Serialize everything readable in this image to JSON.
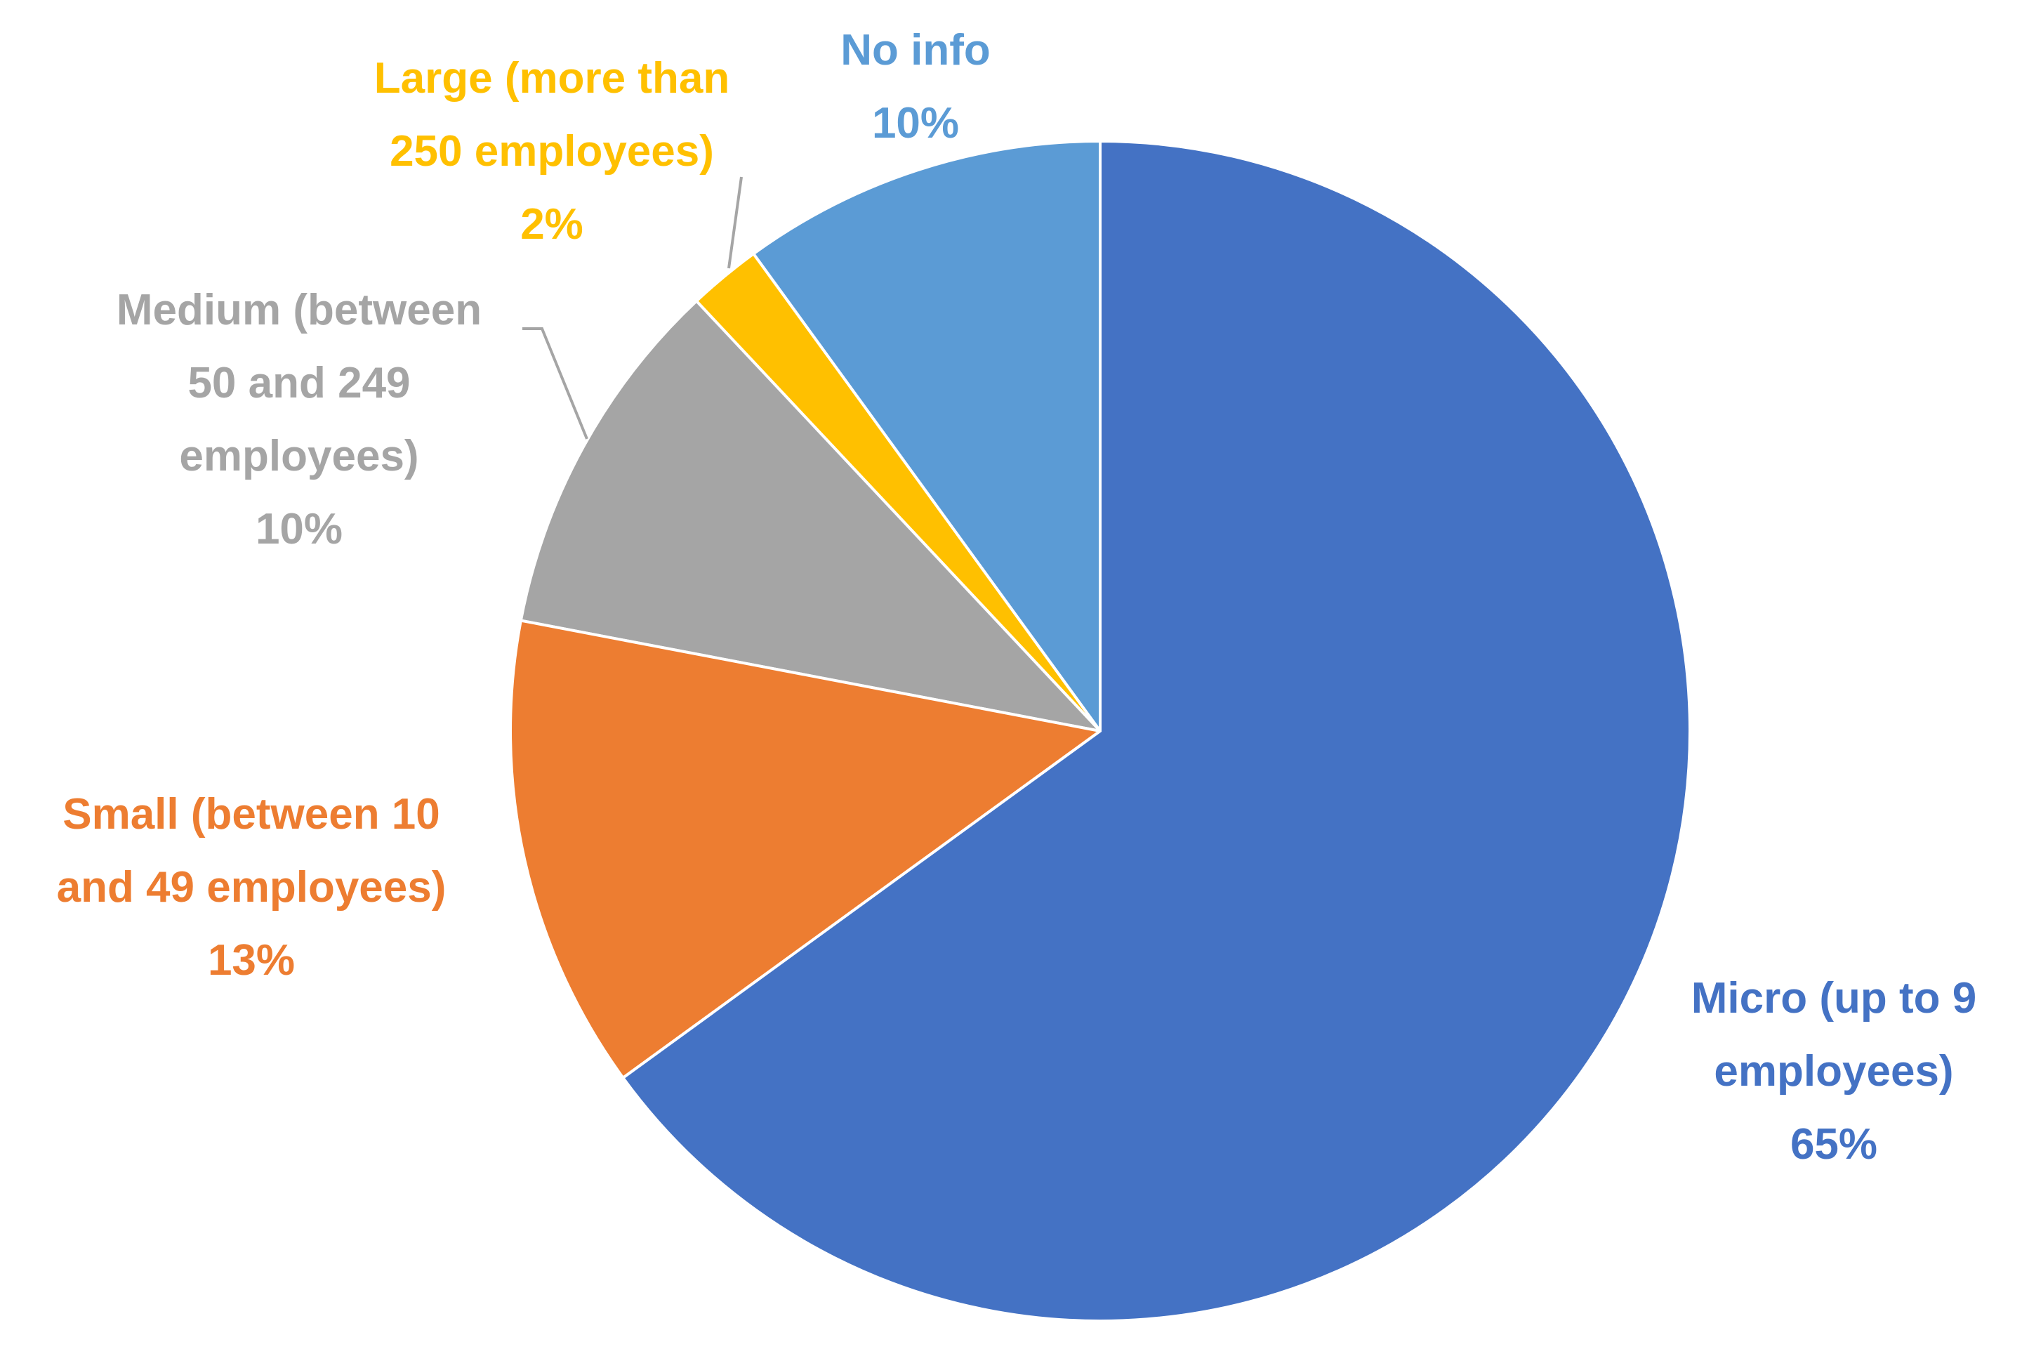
{
  "chart_data": {
    "type": "pie",
    "categories": [
      "Micro (up to 9 employees)",
      "Small (between 10 and 49 employees)",
      "Medium (between 50 and 249 employees)",
      "Large (more than 250 employees)",
      "No info"
    ],
    "values": [
      65,
      13,
      10,
      2,
      10
    ],
    "value_labels": [
      "65%",
      "13%",
      "10%",
      "2%",
      "10%"
    ],
    "colors": [
      "#4472c4",
      "#ed7d31",
      "#a5a5a5",
      "#ffc000",
      "#5b9bd5"
    ]
  }
}
